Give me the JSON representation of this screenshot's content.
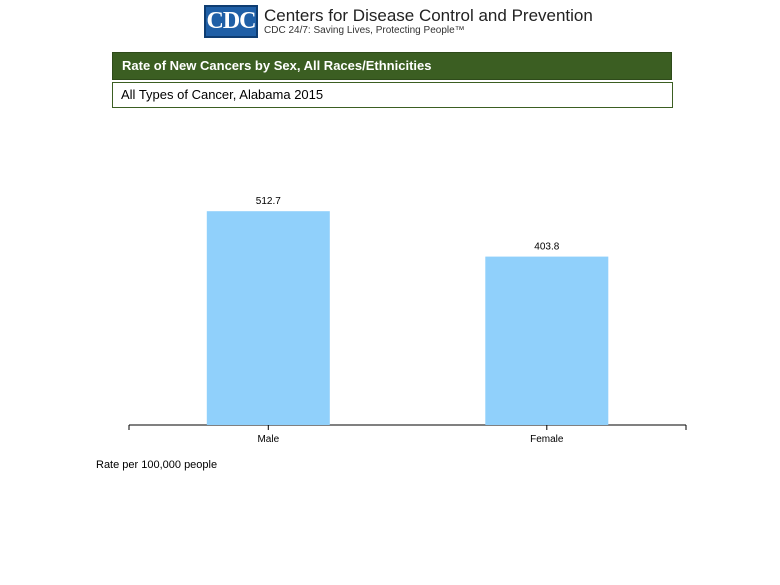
{
  "header": {
    "logo_text": "CDC",
    "org_name": "Centers for Disease Control and Prevention",
    "tagline": "CDC 24/7: Saving Lives, Protecting People™"
  },
  "colors": {
    "brand_blue": "#1f5fa6",
    "title_green": "#3b5e22",
    "bar_fill": "#90d0fb"
  },
  "chart_data": {
    "type": "bar",
    "title": "Rate of New Cancers by Sex, All Races/Ethnicities",
    "subtitle": "All Types of Cancer, Alabama 2015",
    "categories": [
      "Male",
      "Female"
    ],
    "values": [
      512.7,
      403.8
    ],
    "data_labels": [
      "512.7",
      "403.8"
    ],
    "xlabel": "",
    "ylabel": "",
    "ylim": [
      0,
      600
    ],
    "grid": false,
    "legend": "none",
    "footnote": "Rate per 100,000 people"
  }
}
